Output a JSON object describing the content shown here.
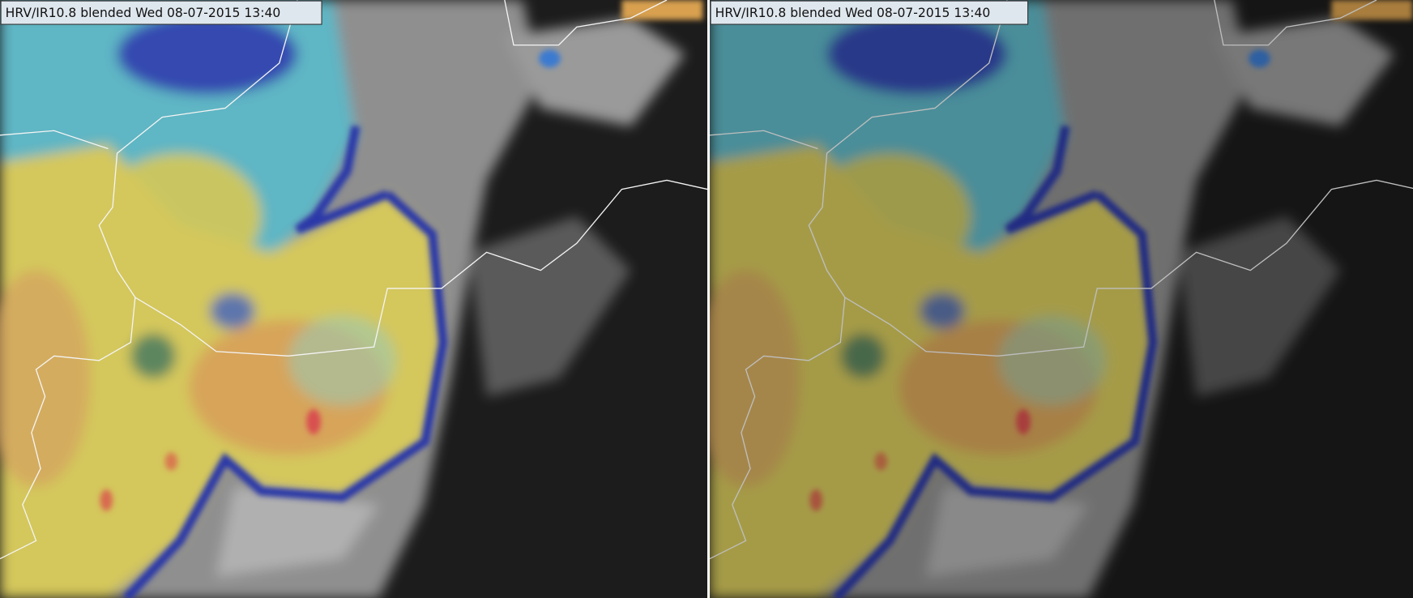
{
  "panels": [
    {
      "label": "HRV/IR10.8 blended Wed 08-07-2015 13:40"
    },
    {
      "label": "HRV/IR10.8 blended Wed 08-07-2015 13:40"
    }
  ]
}
